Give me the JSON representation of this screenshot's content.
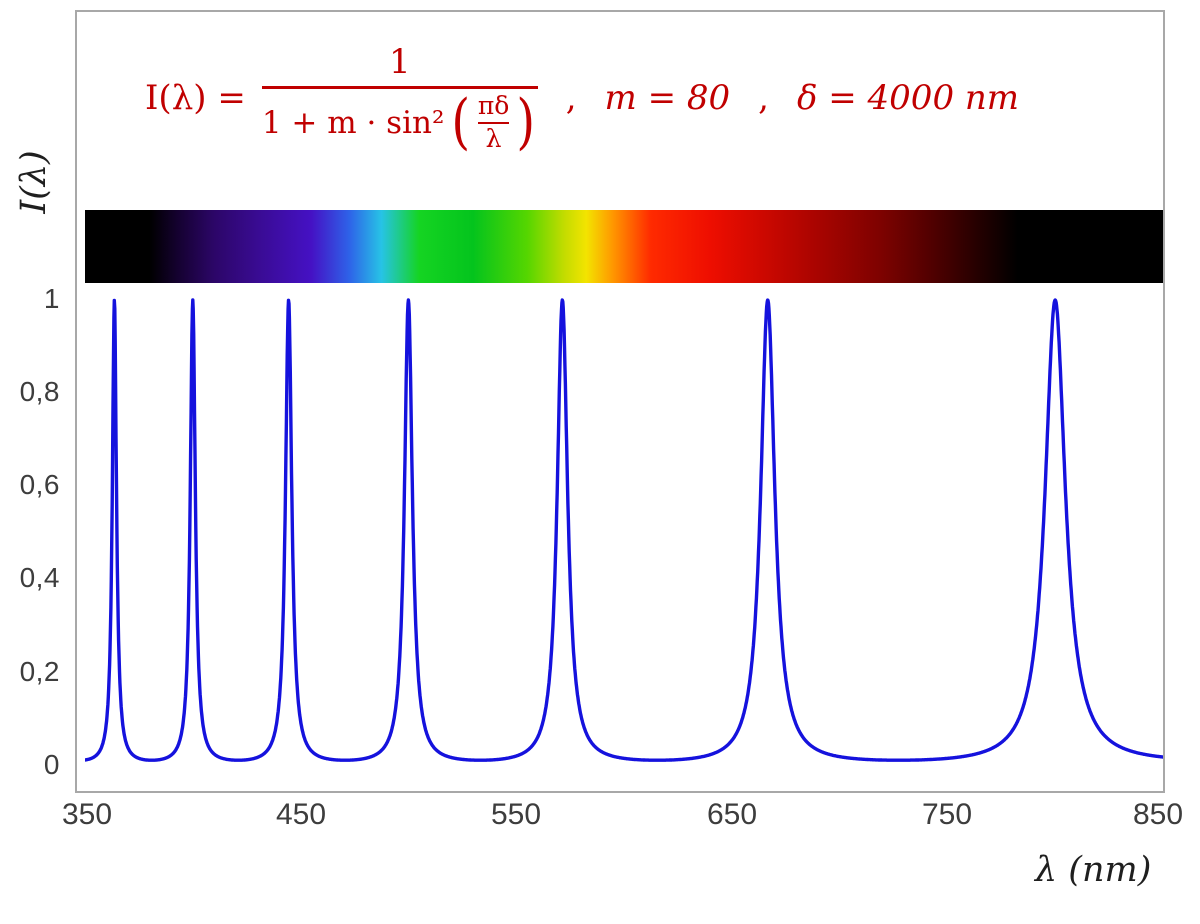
{
  "chart_data": {
    "type": "line",
    "title_formula": "I(λ) = 1 / (1 + m·sin²(πδ/λ)) ,  m = 80 ,  δ = 4000 nm",
    "parameters": {
      "m": 80,
      "delta_nm": 4000
    },
    "xlabel": "λ  (nm)",
    "ylabel": "I(λ)",
    "x_range": [
      350,
      850
    ],
    "y_range": [
      0,
      1
    ],
    "x_ticks": [
      350,
      450,
      550,
      650,
      750,
      850
    ],
    "y_tick_labels": [
      "1",
      "0,8",
      "0,6",
      "0,4",
      "0,2",
      "0"
    ],
    "peaks_nm": [
      363.64,
      400,
      444.44,
      500,
      571.43,
      666.67,
      800
    ],
    "baseline_value": 0.0123,
    "curve_color": "#1512dd",
    "formula_color": "#c00000",
    "spectrum_band": {
      "visible_from_nm": 380,
      "visible_to_nm": 780
    },
    "grid": "off",
    "legend": "none"
  },
  "formula": {
    "lhs": "I(λ) =",
    "numerator": "1",
    "denom_prefix": "1 + m · sin²",
    "open_paren": "(",
    "inner_numerator": "πδ",
    "inner_denominator": "λ",
    "close_paren": ")",
    "comma1": ",",
    "m_eq": "m = 80",
    "comma2": ",",
    "delta_eq": "δ = 4000 nm"
  }
}
